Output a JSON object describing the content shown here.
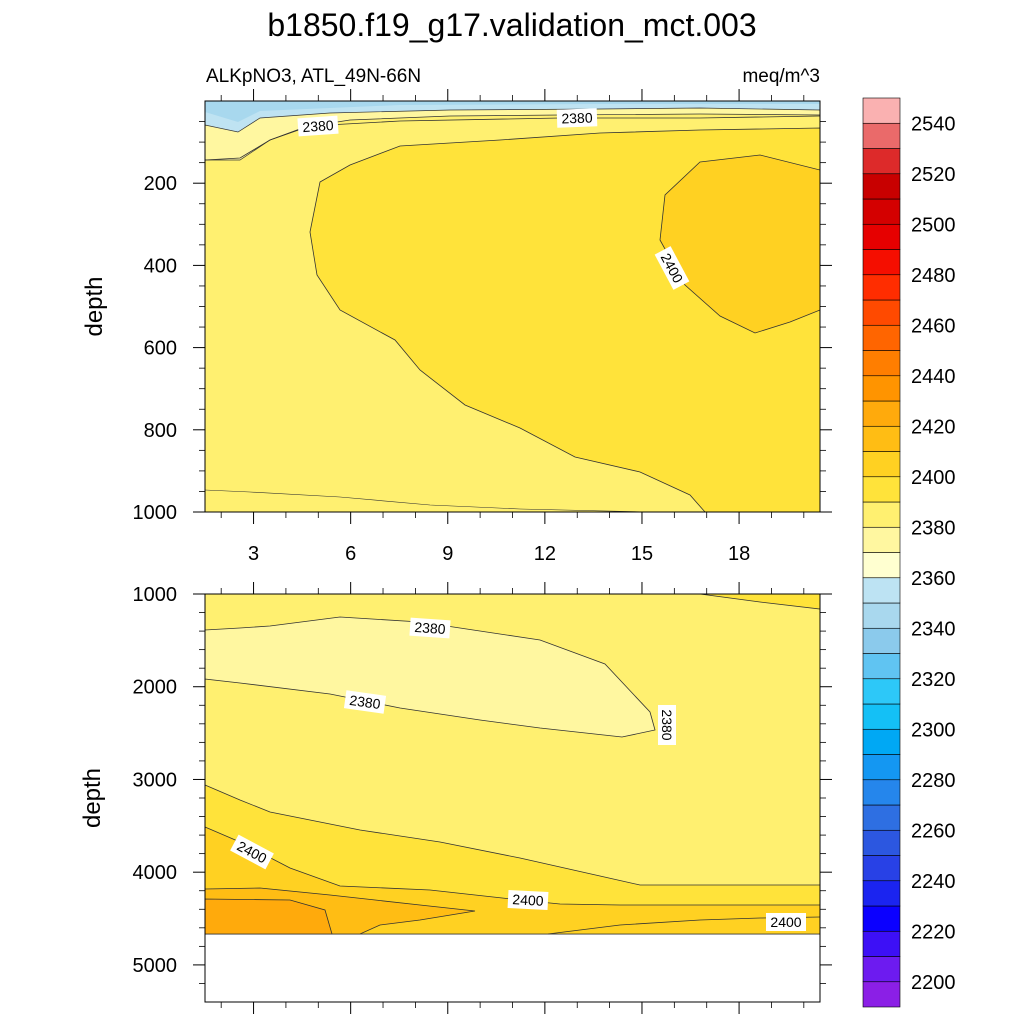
{
  "chart_data": {
    "type": "contour",
    "title": "b1850.f19_g17.validation_mct.003",
    "variable_label": "ALKpNO3, ATL_49N-66N",
    "units_label": "meq/m^3",
    "x_ticks": [
      "3",
      "6",
      "9",
      "12",
      "15",
      "18"
    ],
    "x_range": [
      1.5,
      20.5
    ],
    "panels": [
      {
        "name": "upper",
        "ylabel": "depth",
        "y_range": [
          0,
          1000
        ],
        "y_ticks": [
          "200",
          "400",
          "600",
          "800",
          "1000"
        ],
        "contour_labels": [
          "2380",
          "2380",
          "2400"
        ],
        "fields": [
          {
            "name": "background",
            "value": 2385
          },
          {
            "name": "near-surface-band",
            "value": 2375
          },
          {
            "name": "surface-cold",
            "value": 2365
          },
          {
            "name": "main-body",
            "value": 2395
          },
          {
            "name": "core-max",
            "value": 2405
          }
        ]
      },
      {
        "name": "lower",
        "ylabel": "depth",
        "y_range": [
          1000,
          5400
        ],
        "y_ticks": [
          "1000",
          "2000",
          "3000",
          "4000",
          "5000"
        ],
        "contour_labels": [
          "2380",
          "2380",
          "2380",
          "2400",
          "2400",
          "2400"
        ],
        "fields": [
          {
            "name": "background",
            "value": 2385
          },
          {
            "name": "low-lens",
            "value": 2375
          },
          {
            "name": "deep-band",
            "value": 2395
          },
          {
            "name": "bottom-layer",
            "value": 2405
          },
          {
            "name": "bottom-core",
            "value": 2415
          },
          {
            "name": "bottom-max",
            "value": 2425
          }
        ]
      }
    ],
    "colorbar": {
      "ticks": [
        "2200",
        "2220",
        "2240",
        "2260",
        "2280",
        "2300",
        "2320",
        "2340",
        "2360",
        "2380",
        "2400",
        "2420",
        "2440",
        "2460",
        "2480",
        "2500",
        "2520",
        "2540"
      ],
      "colors": [
        "#8b1fe6",
        "#6d1bf0",
        "#3d10f6",
        "#0b00ff",
        "#1b24f0",
        "#2841e6",
        "#2c57e0",
        "#2e6fe2",
        "#2586ec",
        "#1497f2",
        "#00a8f4",
        "#14c0f6",
        "#2dc8f8",
        "#60c4f2",
        "#8bcaec",
        "#a9d8ee",
        "#bde3f3",
        "#ffffd0",
        "#fff7a0",
        "#fff070",
        "#ffe33a",
        "#ffd122",
        "#ffbd14",
        "#ffaa0c",
        "#ff9400",
        "#ff7e00",
        "#ff6500",
        "#ff4a00",
        "#ff2d00",
        "#f50e00",
        "#e60000",
        "#d40000",
        "#c80000",
        "#dd2a2a",
        "#ea6a6a",
        "#fab1b1"
      ]
    }
  }
}
